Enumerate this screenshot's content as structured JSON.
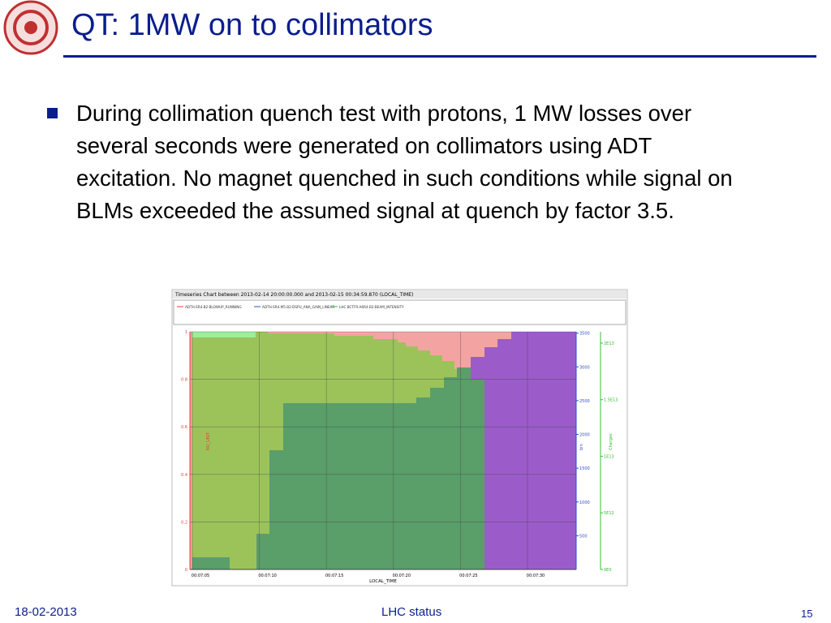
{
  "header": {
    "title": "QT: 1MW on to collimators"
  },
  "body": {
    "bullets": [
      "During collimation quench test with protons, 1 MW losses over several seconds were generated on collimators using ADT excitation. No magnet quenched in such conditions while signal on BLMs exceeded the assumed signal at quench by factor 3.5."
    ]
  },
  "figure": {
    "title": "Timeseries Chart between 2013-02-14 20:00:00.000 and 2013-02-15 00:34:59.870 (LOCAL_TIME)",
    "legend": [
      {
        "name": "ADTH.SR4.B2:BLOWUP_RUNNING",
        "color": "#e04040"
      },
      {
        "name": "ADTH.SR4.M5.B2:DSPU_ANA_GAIN_LINEAR",
        "color": "#3050c0"
      },
      {
        "name": "LHC.BCTFR.A6R4.B2:BEAM_INTENSITY",
        "color": "#30c030"
      }
    ],
    "x_label": "LOCAL_TIME",
    "x_ticks": [
      "00:07:05",
      "00:07:10",
      "00:07:15",
      "00:07:20",
      "00:07:25",
      "00:07:30"
    ],
    "y_label": "NO_UNIT",
    "ylim": [
      0,
      1
    ],
    "yticks": [
      0,
      0.2,
      0.4,
      0.6,
      0.8,
      1
    ],
    "y2_label": "bin",
    "y2lim": [
      0,
      3520
    ],
    "y2ticks": [
      500,
      1000,
      1500,
      2000,
      2500,
      3000,
      3500
    ],
    "y3_label": "Charges",
    "y3lim": [
      0,
      21000000000000.0
    ],
    "y3ticks": [
      {
        "value": 0,
        "label": "0E0"
      },
      {
        "value": 5000000000000.0,
        "label": "5E12"
      },
      {
        "value": 10000000000000.0,
        "label": "1E13"
      },
      {
        "value": 15000000000000.0,
        "label": "1.5E13"
      },
      {
        "value": 20000000000000.0,
        "label": "2E13"
      }
    ]
  },
  "footer": {
    "date": "18-02-2013",
    "center": "LHC status",
    "page": "15"
  }
}
